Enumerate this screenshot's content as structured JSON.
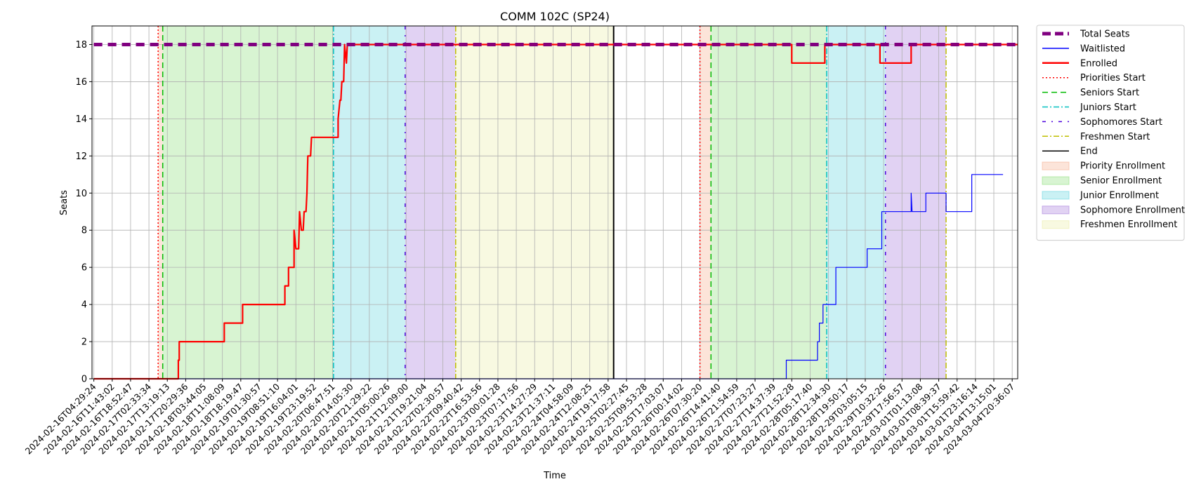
{
  "chart_data": {
    "type": "line",
    "title": "COMM 102C (SP24)",
    "xlabel": "Time",
    "ylabel": "Seats",
    "ylim": [
      0,
      19
    ],
    "yticks": [
      0,
      2,
      4,
      6,
      8,
      10,
      12,
      14,
      16,
      18
    ],
    "grid": true,
    "legend_position": "outside-right",
    "x_ticks": [
      "2024-02-16T04:29:24",
      "2024-02-16T11:43:02",
      "2024-02-16T18:52:47",
      "2024-02-17T02:33:34",
      "2024-02-17T13:19:13",
      "2024-02-17T20:29:36",
      "2024-02-18T03:44:05",
      "2024-02-18T11:08:09",
      "2024-02-18T18:19:47",
      "2024-02-19T01:30:57",
      "2024-02-19T08:51:10",
      "2024-02-19T16:04:01",
      "2024-02-19T23:19:52",
      "2024-02-20T06:47:51",
      "2024-02-20T14:05:30",
      "2024-02-20T21:29:22",
      "2024-02-21T05:00:26",
      "2024-02-21T12:09:00",
      "2024-02-21T19:21:04",
      "2024-02-22T02:30:57",
      "2024-02-22T09:40:42",
      "2024-02-22T16:53:56",
      "2024-02-23T00:01:28",
      "2024-02-23T07:17:56",
      "2024-02-23T14:27:29",
      "2024-02-23T21:37:11",
      "2024-02-24T04:58:09",
      "2024-02-24T12:08:25",
      "2024-02-24T19:17:58",
      "2024-02-25T02:27:45",
      "2024-02-25T09:53:28",
      "2024-02-25T17:03:07",
      "2024-02-26T00:14:02",
      "2024-02-26T07:30:20",
      "2024-02-26T14:41:40",
      "2024-02-26T21:54:59",
      "2024-02-27T07:23:27",
      "2024-02-27T14:37:39",
      "2024-02-27T21:52:28",
      "2024-02-28T05:17:40",
      "2024-02-28T12:34:30",
      "2024-02-28T19:50:17",
      "2024-02-29T03:05:15",
      "2024-02-29T10:32:26",
      "2024-02-29T17:56:57",
      "2024-03-01T01:13:08",
      "2024-03-01T08:39:37",
      "2024-03-01T15:59:42",
      "2024-03-01T23:16:14",
      "2024-03-04T13:15:01",
      "2024-03-04T20:36:07"
    ],
    "x_range_ticks": [
      -0.1,
      50.3
    ],
    "series": [
      {
        "name": "Total Seats",
        "color": "#800080",
        "style": "dashed",
        "points": [
          [
            0,
            18
          ],
          [
            50.3,
            18
          ]
        ]
      },
      {
        "name": "Waitlisted",
        "color": "#0000ff",
        "style": "solid",
        "points": [
          [
            0,
            0
          ],
          [
            37.7,
            0
          ],
          [
            37.7,
            1
          ],
          [
            39.4,
            1
          ],
          [
            39.4,
            2
          ],
          [
            39.5,
            2
          ],
          [
            39.5,
            3
          ],
          [
            39.7,
            3
          ],
          [
            39.7,
            4
          ],
          [
            40.4,
            4
          ],
          [
            40.4,
            6
          ],
          [
            42.1,
            6
          ],
          [
            42.1,
            7
          ],
          [
            42.9,
            7
          ],
          [
            42.9,
            9
          ],
          [
            44.5,
            9
          ],
          [
            44.5,
            10
          ],
          [
            44.55,
            9
          ],
          [
            45.3,
            9
          ],
          [
            45.3,
            10
          ],
          [
            46.4,
            10
          ],
          [
            46.4,
            9
          ],
          [
            47.8,
            9
          ],
          [
            47.8,
            11
          ],
          [
            49.5,
            11
          ]
        ]
      },
      {
        "name": "Enrolled",
        "color": "#ff0000",
        "style": "solid",
        "points": [
          [
            0,
            0
          ],
          [
            4.6,
            0
          ],
          [
            4.6,
            1
          ],
          [
            4.65,
            1
          ],
          [
            4.65,
            2
          ],
          [
            7.1,
            2
          ],
          [
            7.1,
            3
          ],
          [
            8.1,
            3
          ],
          [
            8.1,
            4
          ],
          [
            10.4,
            4
          ],
          [
            10.4,
            5
          ],
          [
            10.6,
            5
          ],
          [
            10.6,
            6
          ],
          [
            10.9,
            6
          ],
          [
            10.9,
            8
          ],
          [
            11.0,
            7
          ],
          [
            11.15,
            7
          ],
          [
            11.2,
            9
          ],
          [
            11.3,
            8
          ],
          [
            11.4,
            8
          ],
          [
            11.45,
            9
          ],
          [
            11.55,
            9
          ],
          [
            11.6,
            10
          ],
          [
            11.65,
            12
          ],
          [
            11.8,
            12
          ],
          [
            11.85,
            13
          ],
          [
            13.3,
            13
          ],
          [
            13.3,
            14
          ],
          [
            13.4,
            15
          ],
          [
            13.45,
            15
          ],
          [
            13.5,
            16
          ],
          [
            13.6,
            16
          ],
          [
            13.65,
            18
          ],
          [
            13.75,
            17
          ],
          [
            13.8,
            18
          ],
          [
            38.0,
            18
          ],
          [
            38.0,
            17
          ],
          [
            39.8,
            17
          ],
          [
            39.8,
            18
          ],
          [
            42.8,
            18
          ],
          [
            42.8,
            17
          ],
          [
            44.5,
            17
          ],
          [
            44.5,
            18
          ],
          [
            50.3,
            18
          ]
        ]
      }
    ],
    "vertical_lines": [
      {
        "name": "Priorities Start",
        "x": 3.5,
        "color": "#ff0000",
        "style": "dotted"
      },
      {
        "name": "Seniors Start",
        "x": 3.75,
        "color": "#00bb00",
        "style": "dashed"
      },
      {
        "name": "Juniors Start",
        "x": 13.05,
        "color": "#00bfbf",
        "style": "dashdot"
      },
      {
        "name": "Sophomores Start",
        "x": 16.95,
        "color": "#4b00dd",
        "style": "loosedashdot"
      },
      {
        "name": "Freshmen Start",
        "x": 19.7,
        "color": "#bfbf00",
        "style": "dashdot"
      },
      {
        "name": "End",
        "x": 28.3,
        "color": "#000000",
        "style": "solid"
      },
      {
        "name": "Priorities Start",
        "x": 33.0,
        "color": "#ff0000",
        "style": "dotted"
      },
      {
        "name": "Seniors Start",
        "x": 33.6,
        "color": "#00bb00",
        "style": "dashed"
      },
      {
        "name": "Juniors Start",
        "x": 39.9,
        "color": "#00bfbf",
        "style": "dashdot"
      },
      {
        "name": "Sophomores Start",
        "x": 43.1,
        "color": "#4b00dd",
        "style": "loosedashdot"
      },
      {
        "name": "Freshmen Start",
        "x": 46.4,
        "color": "#bfbf00",
        "style": "dashdot"
      }
    ],
    "spans": [
      {
        "name": "Priority Enrollment",
        "from": 3.5,
        "to": 3.75,
        "color": "#f4a582"
      },
      {
        "name": "Senior Enrollment",
        "from": 3.75,
        "to": 13.05,
        "color": "#7fdc6a"
      },
      {
        "name": "Junior Enrollment",
        "from": 13.05,
        "to": 16.95,
        "color": "#50d0dc"
      },
      {
        "name": "Sophomore Enrollment",
        "from": 16.95,
        "to": 19.7,
        "color": "#9a6ad8"
      },
      {
        "name": "Freshmen Enrollment",
        "from": 19.7,
        "to": 28.3,
        "color": "#e8ea9a"
      },
      {
        "name": "Priority Enrollment",
        "from": 33.0,
        "to": 33.6,
        "color": "#f4a582"
      },
      {
        "name": "Senior Enrollment",
        "from": 33.6,
        "to": 39.9,
        "color": "#7fdc6a"
      },
      {
        "name": "Junior Enrollment",
        "from": 39.9,
        "to": 43.1,
        "color": "#50d0dc"
      },
      {
        "name": "Sophomore Enrollment",
        "from": 43.1,
        "to": 46.4,
        "color": "#9a6ad8"
      }
    ],
    "legend": [
      {
        "label": "Total Seats",
        "kind": "line",
        "color": "#800080",
        "style": "dashed-thick"
      },
      {
        "label": "Waitlisted",
        "kind": "line",
        "color": "#0000ff",
        "style": "solid"
      },
      {
        "label": "Enrolled",
        "kind": "line",
        "color": "#ff0000",
        "style": "solid-thick"
      },
      {
        "label": "Priorities Start",
        "kind": "line",
        "color": "#ff0000",
        "style": "dotted"
      },
      {
        "label": "Seniors Start",
        "kind": "line",
        "color": "#00bb00",
        "style": "dashed"
      },
      {
        "label": "Juniors Start",
        "kind": "line",
        "color": "#00bfbf",
        "style": "dashdot"
      },
      {
        "label": "Sophomores Start",
        "kind": "line",
        "color": "#4b00dd",
        "style": "loosedashdot"
      },
      {
        "label": "Freshmen Start",
        "kind": "line",
        "color": "#bfbf00",
        "style": "dashdot"
      },
      {
        "label": "End",
        "kind": "line",
        "color": "#000000",
        "style": "solid"
      },
      {
        "label": "Priority Enrollment",
        "kind": "patch",
        "color": "#f4a582"
      },
      {
        "label": "Senior Enrollment",
        "kind": "patch",
        "color": "#7fdc6a"
      },
      {
        "label": "Junior Enrollment",
        "kind": "patch",
        "color": "#50d0dc"
      },
      {
        "label": "Sophomore Enrollment",
        "kind": "patch",
        "color": "#9a6ad8"
      },
      {
        "label": "Freshmen Enrollment",
        "kind": "patch",
        "color": "#e8ea9a"
      }
    ]
  }
}
